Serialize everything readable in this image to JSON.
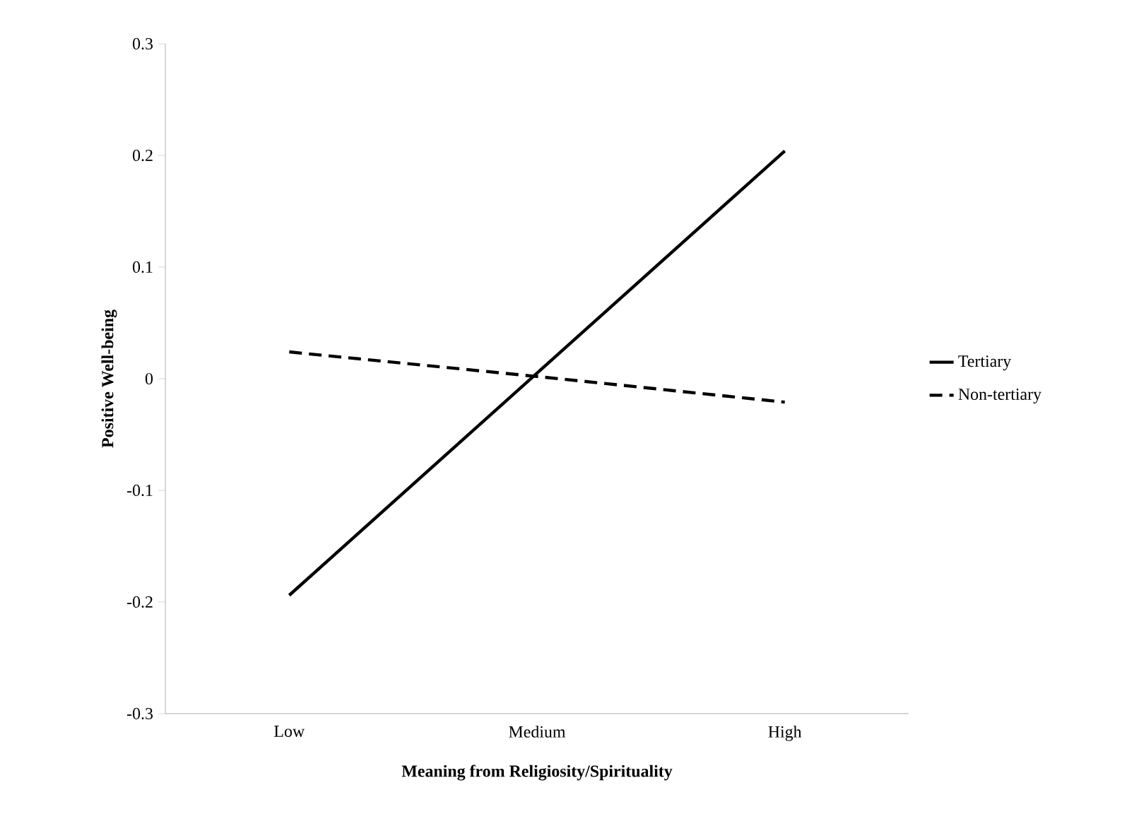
{
  "chart_data": {
    "type": "line",
    "xlabel": "Meaning from Religiosity/Spirituality",
    "ylabel": "Positive Well-being",
    "categories": [
      "Low",
      "Medium",
      "High"
    ],
    "series": [
      {
        "name": "Tertiary",
        "color": "#000000",
        "line_style": "solid",
        "values": [
          -0.194,
          0.005,
          0.204
        ]
      },
      {
        "name": "Non-tertiary",
        "color": "#000000",
        "line_style": "dashed",
        "values": [
          0.024,
          0.002,
          -0.021
        ]
      }
    ],
    "ylim": [
      -0.3,
      0.3
    ],
    "yticks": [
      -0.3,
      -0.2,
      -0.1,
      0,
      0.1,
      0.2,
      0.3
    ],
    "grid": false,
    "legend": "right",
    "marker": "none"
  }
}
